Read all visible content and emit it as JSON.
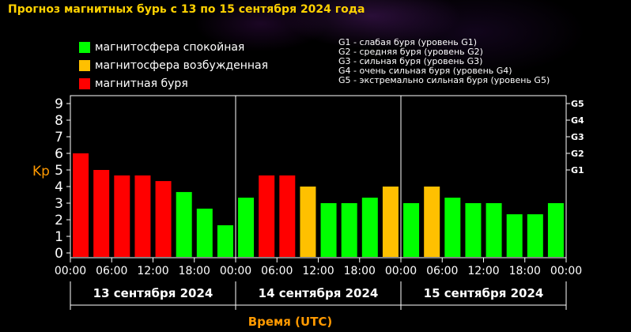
{
  "title": "Прогноз магнитных бурь с 13 по 15 сентября 2024 года",
  "legend": [
    {
      "label": "магнитосфера спокойная",
      "color": "#00ff00"
    },
    {
      "label": "магнитосфера возбужденная",
      "color": "#ffc000"
    },
    {
      "label": "магнитная буря",
      "color": "#ff0000"
    }
  ],
  "storm_levels": [
    "G1 - слабая буря (уровень G1)",
    "G2 - средняя буря (уровень G2)",
    "G3 - сильная буря (уровень G3)",
    "G4 - очень сильная буря (уровень G4)",
    "G5 - экстремально сильная буря (уровень G5)"
  ],
  "colors": {
    "quiet": "#00ff00",
    "active": "#ffc000",
    "storm": "#ff0000",
    "axis_label": "#ff9900",
    "text": "#ffffff"
  },
  "chart_data": {
    "type": "bar",
    "ylabel": "Kp",
    "xlabel": "Время (UTC)",
    "ylim": [
      0,
      9
    ],
    "yticks": [
      "0",
      "1",
      "2",
      "3",
      "4",
      "5",
      "6",
      "7",
      "8",
      "9"
    ],
    "right_ticks": [
      {
        "label": "G1",
        "kp": 5
      },
      {
        "label": "G2",
        "kp": 6
      },
      {
        "label": "G3",
        "kp": 7
      },
      {
        "label": "G4",
        "kp": 8
      },
      {
        "label": "G5",
        "kp": 9
      }
    ],
    "xticks": [
      "00:00",
      "06:00",
      "12:00",
      "18:00",
      "00:00",
      "06:00",
      "12:00",
      "18:00",
      "00:00",
      "06:00",
      "12:00",
      "18:00",
      "00:00"
    ],
    "days": [
      "13 сентября 2024",
      "14 сентября 2024",
      "15 сентября 2024"
    ],
    "values": [
      6.0,
      5.0,
      4.67,
      4.67,
      4.33,
      3.67,
      2.67,
      1.67,
      3.33,
      4.67,
      4.67,
      4.0,
      3.0,
      3.0,
      3.33,
      4.0,
      3.0,
      4.0,
      3.33,
      3.0,
      3.0,
      2.33,
      2.33,
      3.0
    ],
    "categories": [
      "storm",
      "storm",
      "storm",
      "storm",
      "storm",
      "quiet",
      "quiet",
      "quiet",
      "quiet",
      "storm",
      "storm",
      "active",
      "quiet",
      "quiet",
      "quiet",
      "active",
      "quiet",
      "active",
      "quiet",
      "quiet",
      "quiet",
      "quiet",
      "quiet",
      "quiet"
    ]
  }
}
